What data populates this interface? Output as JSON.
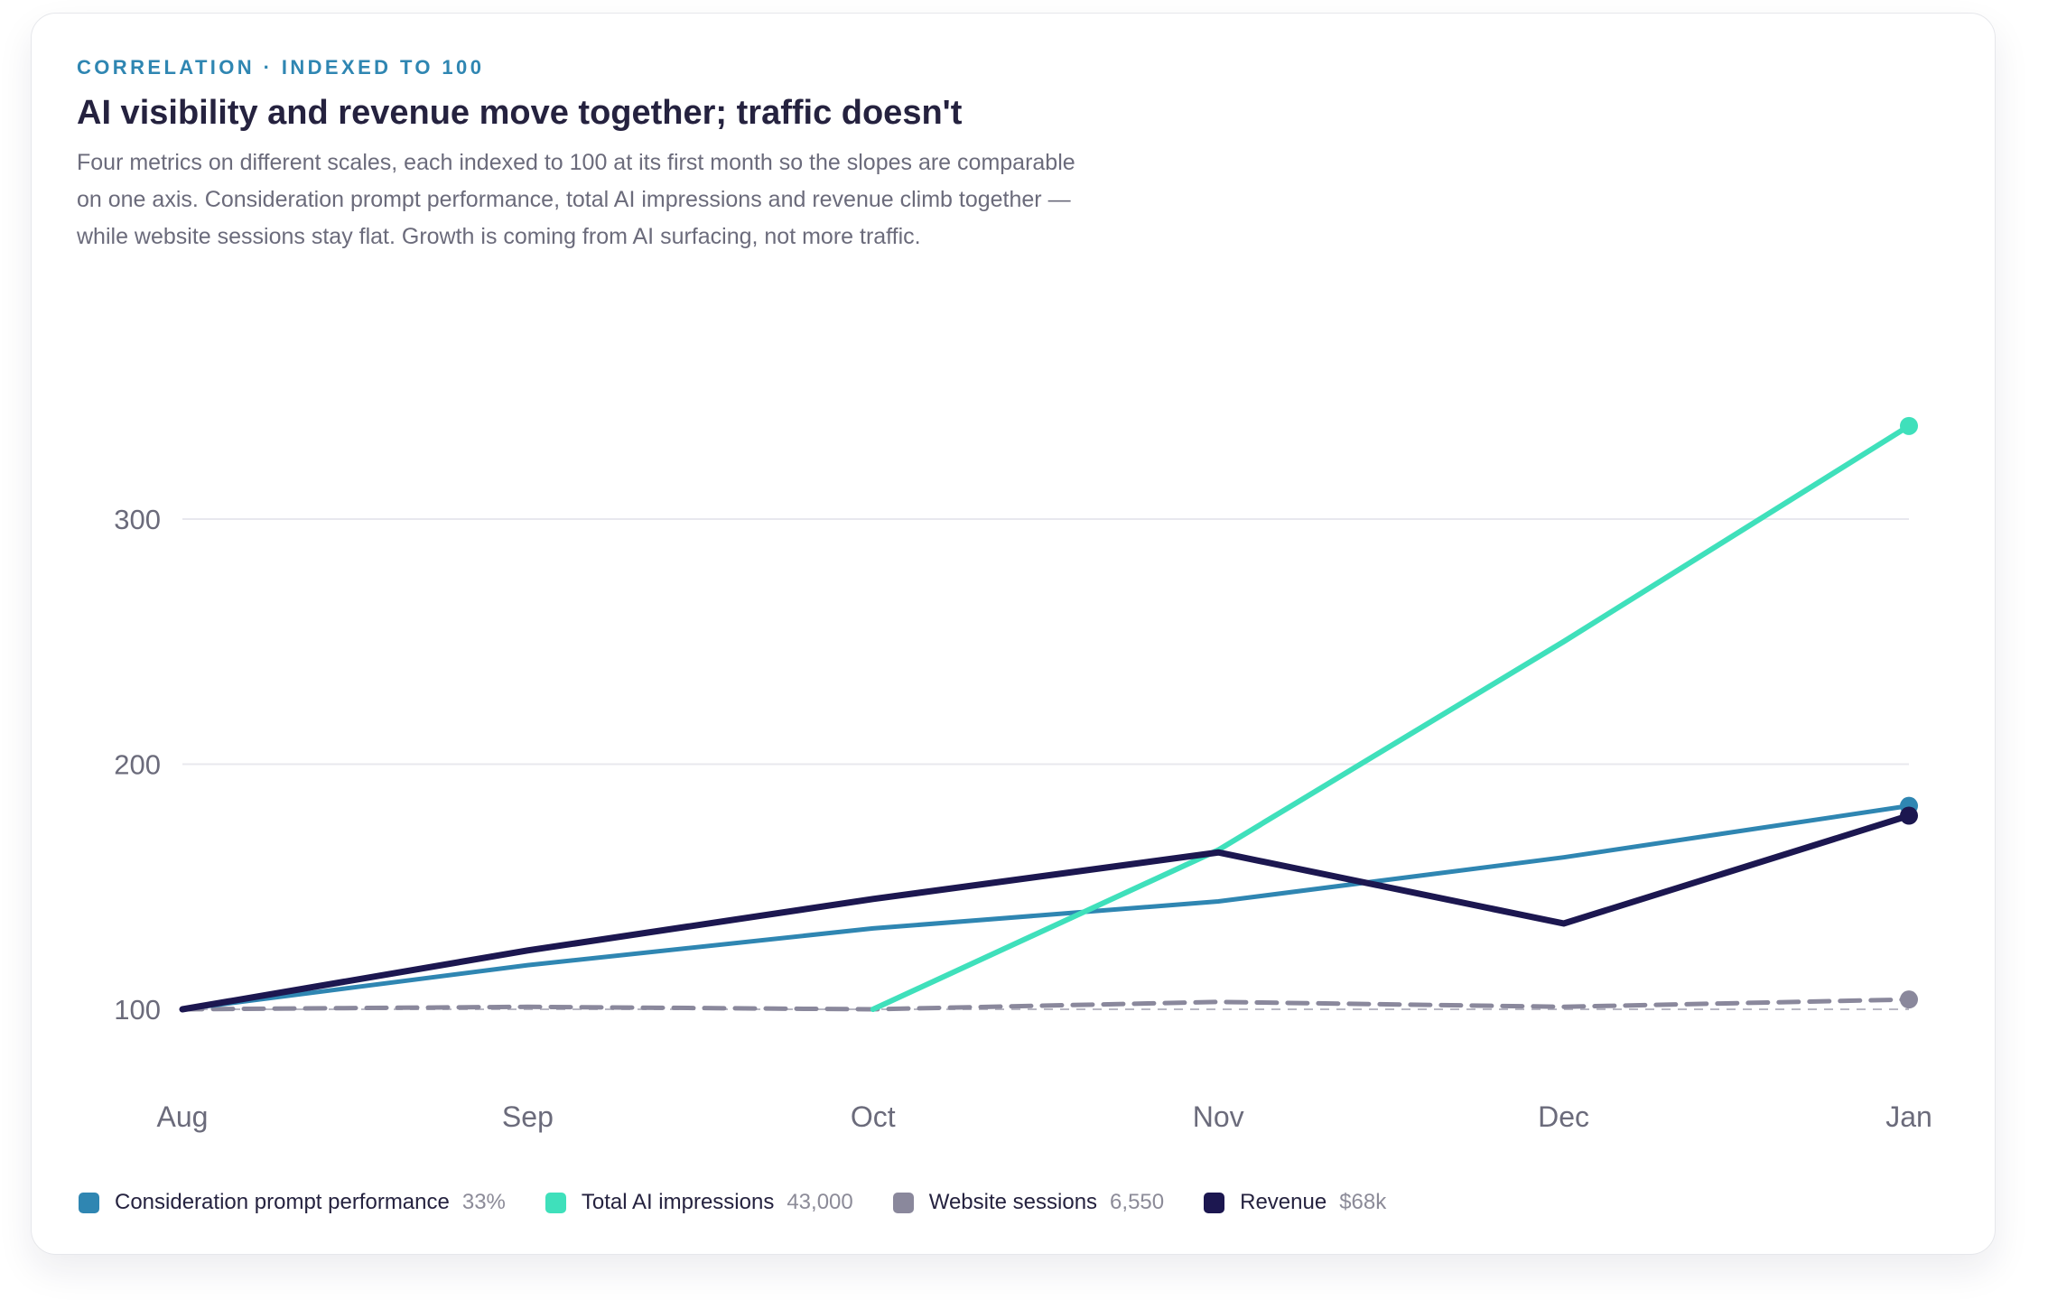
{
  "header": {
    "eyebrow": "CORRELATION · INDEXED TO 100",
    "title": "AI visibility and revenue move together; traffic doesn't",
    "description": "Four metrics on different scales, each indexed to 100 at its first month so the slopes are comparable on one axis. Consideration prompt performance, total AI impressions and revenue climb together — while website sessions stay flat. Growth is coming from AI surfacing, not more traffic."
  },
  "chart_data": {
    "type": "line",
    "title": "AI visibility and revenue move together; traffic doesn't",
    "x": [
      "Aug",
      "Sep",
      "Oct",
      "Nov",
      "Dec",
      "Jan"
    ],
    "y_ticks": [
      100,
      200,
      300
    ],
    "ylim": [
      0,
      365
    ],
    "baseline": 100,
    "grid": true,
    "legend_position": "bottom-left",
    "series": [
      {
        "name": "Consideration prompt performance",
        "legend_value": "33%",
        "color": "#2f86b2",
        "style": "solid",
        "values": [
          100,
          118,
          133,
          144,
          162,
          183
        ]
      },
      {
        "name": "Total AI impressions",
        "legend_value": "43,000",
        "color": "#3fe0bb",
        "style": "solid",
        "values": [
          null,
          null,
          100,
          165,
          250,
          338
        ]
      },
      {
        "name": "Website sessions",
        "legend_value": "6,550",
        "color": "#8a889c",
        "style": "dashed",
        "values": [
          100,
          101,
          100,
          103,
          101,
          104
        ]
      },
      {
        "name": "Revenue",
        "legend_value": "$68k",
        "color": "#1c1750",
        "style": "solid",
        "values": [
          100,
          124,
          145,
          164,
          135,
          179
        ]
      }
    ]
  }
}
